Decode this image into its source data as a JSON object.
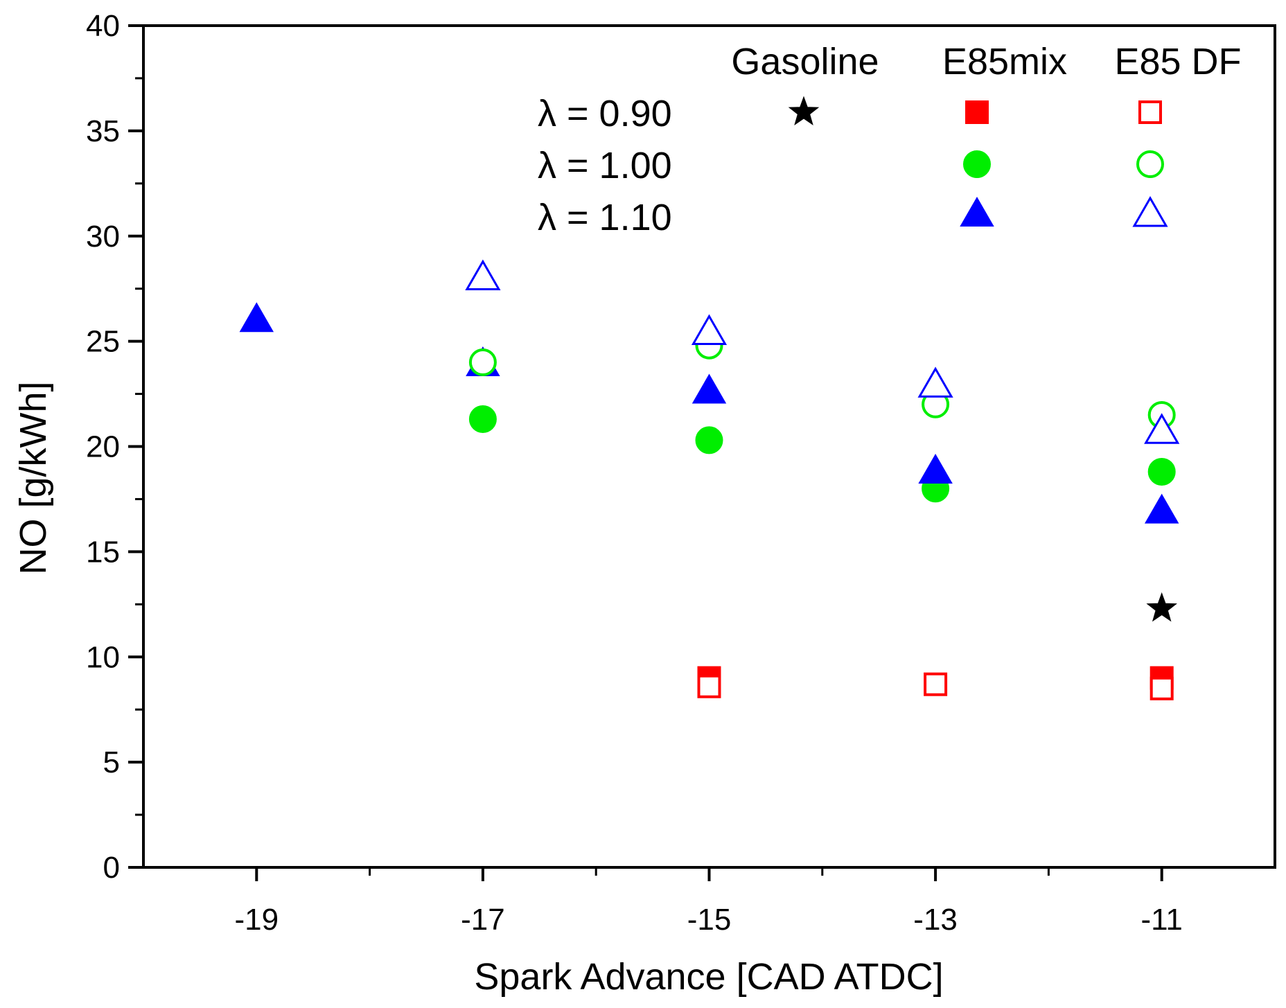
{
  "chart_data": {
    "type": "scatter",
    "title": "",
    "xlabel": "Spark Advance [CAD ATDC]",
    "ylabel": "NO [g/kWh]",
    "xlim": [
      -20,
      -10
    ],
    "ylim": [
      0,
      40
    ],
    "xticks": [
      -19,
      -17,
      -15,
      -13,
      -11
    ],
    "xtick_labels": [
      "-19",
      "-17",
      "-15",
      "-13",
      "-11"
    ],
    "yticks": [
      0,
      5,
      10,
      15,
      20,
      25,
      30,
      35,
      40
    ],
    "ytick_labels": [
      "0",
      "5",
      "10",
      "15",
      "20",
      "25",
      "30",
      "35",
      "40"
    ],
    "grid": false,
    "legend": {
      "placement": "top-right",
      "columns": [
        "Gasoline",
        "E85mix",
        "E85 DF"
      ],
      "rows": [
        "λ = 0.90",
        "λ = 1.00",
        "λ = 1.10"
      ]
    },
    "series": [
      {
        "name": "Gasoline λ = 0.90",
        "marker": "star",
        "filled": true,
        "color": "#000000",
        "points": [
          {
            "x": -11,
            "y": 12.3
          }
        ]
      },
      {
        "name": "E85mix λ = 0.90",
        "marker": "square",
        "filled": true,
        "color": "#ff0000",
        "points": [
          {
            "x": -15,
            "y": 9.0
          },
          {
            "x": -11,
            "y": 9.0
          }
        ]
      },
      {
        "name": "E85 DF λ = 0.90",
        "marker": "square",
        "filled": false,
        "color": "#ff0000",
        "points": [
          {
            "x": -15,
            "y": 8.6
          },
          {
            "x": -13,
            "y": 8.7
          },
          {
            "x": -11,
            "y": 8.5
          }
        ]
      },
      {
        "name": "E85mix λ = 1.00",
        "marker": "circle",
        "filled": true,
        "color": "#00ee00",
        "points": [
          {
            "x": -17,
            "y": 21.3
          },
          {
            "x": -15,
            "y": 20.3
          },
          {
            "x": -13,
            "y": 18.0
          },
          {
            "x": -11,
            "y": 18.8
          }
        ]
      },
      {
        "name": "E85 DF λ = 1.00",
        "marker": "circle",
        "filled": false,
        "color": "#00ee00",
        "points": [
          {
            "x": -17,
            "y": 24.0
          },
          {
            "x": -15,
            "y": 24.8
          },
          {
            "x": -13,
            "y": 22.0
          },
          {
            "x": -11,
            "y": 21.5
          }
        ]
      },
      {
        "name": "E85mix λ = 1.10",
        "marker": "triangle",
        "filled": true,
        "color": "#0000ff",
        "points": [
          {
            "x": -19,
            "y": 26.0
          },
          {
            "x": -17,
            "y": 23.9
          },
          {
            "x": -15,
            "y": 22.6
          },
          {
            "x": -13,
            "y": 18.8
          },
          {
            "x": -11,
            "y": 16.9
          }
        ]
      },
      {
        "name": "E85 DF λ = 1.10",
        "marker": "triangle",
        "filled": false,
        "color": "#0000ff",
        "points": [
          {
            "x": -17,
            "y": 28.0
          },
          {
            "x": -15,
            "y": 25.4
          },
          {
            "x": -13,
            "y": 22.9
          },
          {
            "x": -11,
            "y": 20.7
          }
        ]
      }
    ]
  }
}
